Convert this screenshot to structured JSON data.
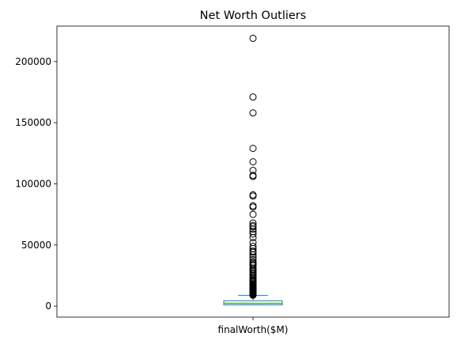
{
  "chart_data": {
    "type": "box",
    "title": "Net Worth Outliers",
    "xlabel": "",
    "ylabel": "",
    "categories": [
      "finalWorth($M)"
    ],
    "ylim": [
      -9000,
      229000
    ],
    "yticks": [
      0,
      50000,
      100000,
      150000,
      200000
    ],
    "ytick_labels": [
      "0",
      "50000",
      "100000",
      "150000",
      "200000"
    ],
    "grid": false,
    "colors": {
      "box": "#1f77b4",
      "median": "#2ca02c",
      "outlier": "#000000"
    },
    "box": {
      "q1": 1000,
      "median": 2300,
      "q3": 4400,
      "whisker_low": 1000,
      "whisker_high": 8700
    },
    "outliers": [
      219000,
      171000,
      158000,
      129000,
      118000,
      111000,
      107000,
      106000,
      91000,
      90000,
      82000,
      81000,
      75000,
      68000,
      66000,
      65000,
      63000,
      61000,
      59000,
      56000,
      52000,
      49000,
      47000,
      45000,
      44000,
      42000,
      40000,
      38000,
      36000,
      35000,
      34000,
      33000,
      31000,
      30000,
      29000,
      28000,
      27000,
      26000,
      25000,
      24000,
      23000,
      22000,
      21000,
      20500,
      20000,
      19000,
      18000,
      17500,
      17000,
      16500,
      16000,
      15500,
      15000,
      14500,
      14000,
      13500,
      13000,
      12500,
      12000,
      11500,
      11000,
      10700,
      10400,
      10100,
      9800,
      9500,
      9200,
      8900
    ]
  }
}
